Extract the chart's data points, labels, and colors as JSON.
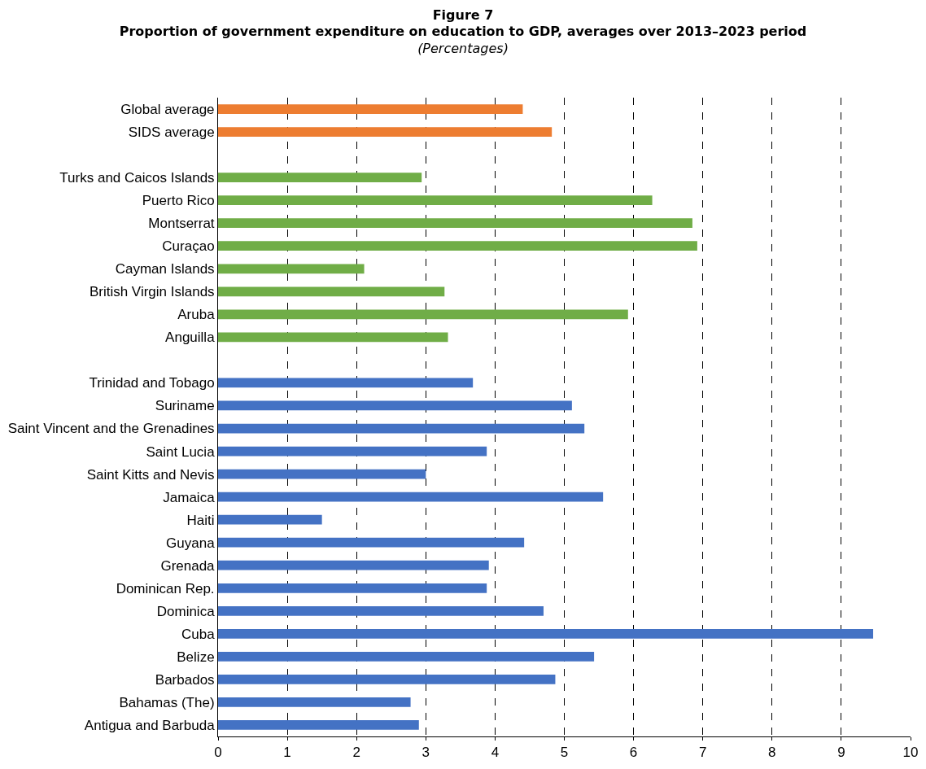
{
  "chart_data": {
    "type": "bar",
    "orientation": "horizontal",
    "title": "Figure 7\nProportion of government expenditure on education to GDP, averages over 2013–2023 period",
    "subtitle": "(Percentages)",
    "categories": [
      "Global average",
      "SIDS average",
      null,
      "Turks and Caicos Islands",
      "Puerto Rico",
      "Montserrat",
      "Curaçao",
      "Cayman Islands",
      "British Virgin Islands",
      "Aruba",
      "Anguilla",
      null,
      "Trinidad and Tobago",
      "Suriname",
      "Saint Vincent and the Grenadines",
      "Saint Lucia",
      "Saint Kitts and Nevis",
      "Jamaica",
      "Haiti",
      "Guyana",
      "Grenada",
      "Dominican Rep.",
      "Dominica",
      "Cuba",
      "Belize",
      "Barbados",
      "Bahamas (The)",
      "Antigua and Barbuda"
    ],
    "values": [
      4.4,
      4.82,
      null,
      2.94,
      6.27,
      6.85,
      6.92,
      2.11,
      3.27,
      5.92,
      3.32,
      null,
      3.68,
      5.11,
      5.29,
      3.88,
      3.0,
      5.56,
      1.5,
      4.42,
      3.91,
      3.88,
      4.7,
      9.46,
      5.43,
      4.87,
      2.78,
      2.9
    ],
    "colors": [
      "#ed7d31",
      "#ed7d31",
      null,
      "#70ad47",
      "#70ad47",
      "#70ad47",
      "#70ad47",
      "#70ad47",
      "#70ad47",
      "#70ad47",
      "#70ad47",
      null,
      "#4472c4",
      "#4472c4",
      "#4472c4",
      "#4472c4",
      "#4472c4",
      "#4472c4",
      "#4472c4",
      "#4472c4",
      "#4472c4",
      "#4472c4",
      "#4472c4",
      "#4472c4",
      "#4472c4",
      "#4472c4",
      "#4472c4",
      "#4472c4"
    ],
    "xlim": [
      0,
      10
    ],
    "xticks": [
      0,
      1,
      2,
      3,
      4,
      5,
      6,
      7,
      8,
      9,
      10
    ],
    "grid": "x",
    "line_style": "dashed"
  }
}
